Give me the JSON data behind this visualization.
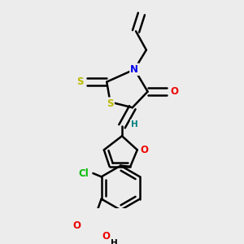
{
  "background_color": "#ececec",
  "bond_color": "#000000",
  "bond_width": 1.8,
  "atom_colors": {
    "N": "#0000ee",
    "O": "#ee0000",
    "S": "#bbbb00",
    "Cl": "#00bb00",
    "H": "#008080"
  },
  "font_size": 8.5
}
